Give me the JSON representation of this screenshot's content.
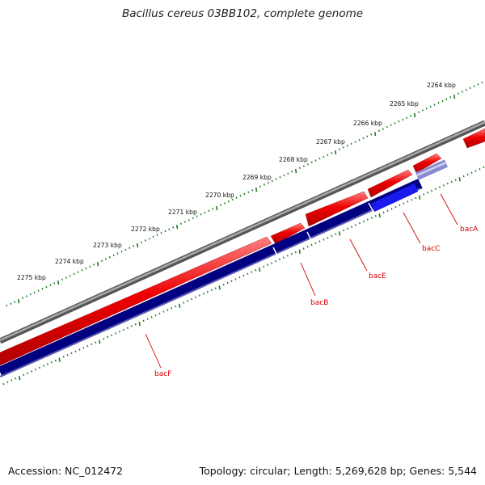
{
  "title": "Bacillus cereus 03BB102, complete genome",
  "footer": {
    "accession": "Accession: NC_012472",
    "summary": "Topology: circular; Length: 5,269,628 bp; Genes: 5,544"
  },
  "colors": {
    "backbone": "#7a7a7a",
    "forward_cds": "#ee0000",
    "reverse_band": "#000080",
    "highlight_band": "#1010ee",
    "tick": "#1f7a1f",
    "label": "#d40000"
  },
  "ruler": {
    "unit": "kbp",
    "labels": [
      "2264 kbp",
      "2265 kbp",
      "2266 kbp",
      "2267 kbp",
      "2268 kbp",
      "2269 kbp",
      "2270 kbp",
      "2271 kbp",
      "2272 kbp",
      "2273 kbp",
      "2274 kbp",
      "2275 kbp"
    ]
  },
  "genes": [
    {
      "name": "bacA"
    },
    {
      "name": "bacC"
    },
    {
      "name": "bacE"
    },
    {
      "name": "bacB"
    },
    {
      "name": "bacF"
    }
  ]
}
